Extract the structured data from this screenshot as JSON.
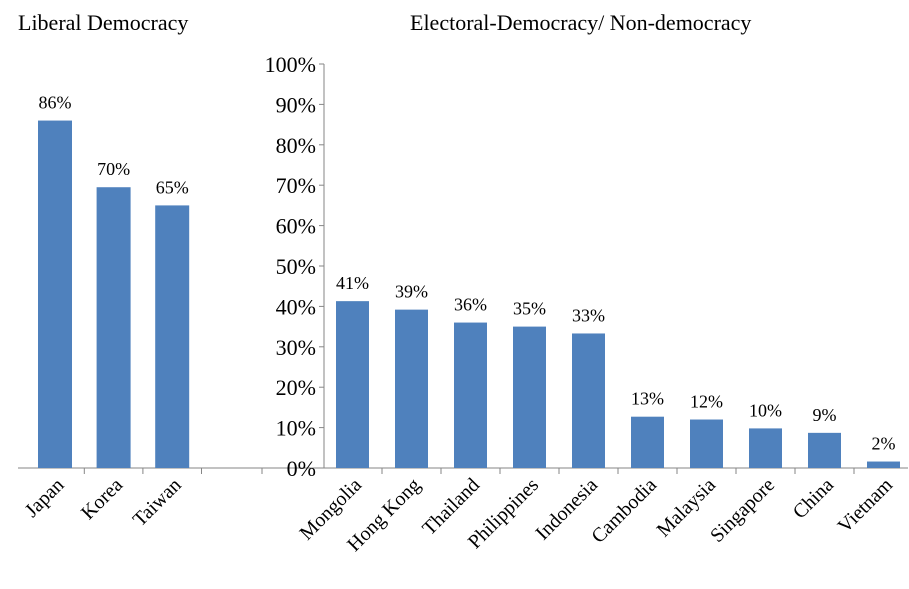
{
  "chart_data": {
    "type": "bar",
    "y_axis": {
      "ticks": [
        "0%",
        "10%",
        "20%",
        "30%",
        "40%",
        "50%",
        "60%",
        "70%",
        "80%",
        "90%",
        "100%"
      ],
      "ylim": [
        0,
        100
      ]
    },
    "grid": false,
    "bar_color": "#4f81bd",
    "groups": [
      {
        "title": "Liberal Democracy",
        "categories": [
          "Japan",
          "Korea",
          "Taiwan"
        ],
        "values": [
          86,
          69.5,
          65
        ],
        "labels": [
          "86%",
          "70%",
          "65%"
        ]
      },
      {
        "title": "Electoral-Democracy/ Non-democracy",
        "categories": [
          "Mongolia",
          "Hong Kong",
          "Thailand",
          "Philippines",
          "Indonesia",
          "Cambodia",
          "Malaysia",
          "Singapore",
          "China",
          "Vietnam"
        ],
        "values": [
          41.3,
          39.2,
          36,
          35,
          33.3,
          12.7,
          12,
          9.8,
          8.7,
          1.6
        ],
        "labels": [
          "41%",
          "39%",
          "36%",
          "35%",
          "33%",
          "13%",
          "12%",
          "10%",
          "9%",
          "2%"
        ]
      }
    ]
  }
}
